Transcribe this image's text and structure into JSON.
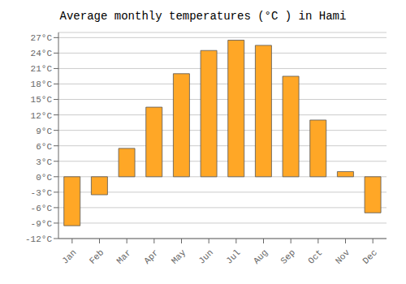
{
  "chart_data": {
    "type": "bar",
    "title": "Average monthly temperatures (°C ) in Hami",
    "categories": [
      "Jan",
      "Feb",
      "Mar",
      "Apr",
      "May",
      "Jun",
      "Jul",
      "Aug",
      "Sep",
      "Oct",
      "Nov",
      "Dec"
    ],
    "values": [
      -9.5,
      -3.5,
      5.5,
      13.5,
      20.0,
      24.5,
      26.5,
      25.5,
      19.5,
      11.0,
      1.0,
      -7.0
    ],
    "color": "#FFA726",
    "ylim": [
      -12,
      28
    ],
    "yticks": [
      {
        "value": -12,
        "label": "-12°C"
      },
      {
        "value": -9,
        "label": "-9°C"
      },
      {
        "value": -6,
        "label": "-6°C"
      },
      {
        "value": -3,
        "label": "-3°C"
      },
      {
        "value": 0,
        "label": "0°C"
      },
      {
        "value": 3,
        "label": "3°C"
      },
      {
        "value": 6,
        "label": "6°C"
      },
      {
        "value": 9,
        "label": "9°C"
      },
      {
        "value": 12,
        "label": "12°C"
      },
      {
        "value": 15,
        "label": "15°C"
      },
      {
        "value": 18,
        "label": "18°C"
      },
      {
        "value": 21,
        "label": "21°C"
      },
      {
        "value": 24,
        "label": "24°C"
      },
      {
        "value": 27,
        "label": "27°C"
      }
    ],
    "grid": true
  }
}
